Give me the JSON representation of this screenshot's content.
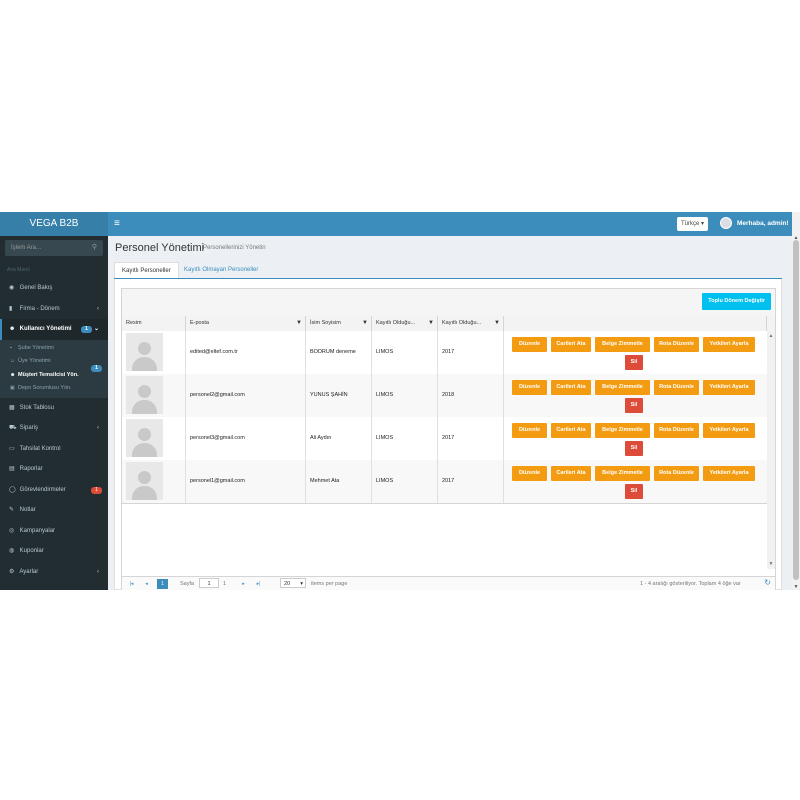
{
  "app": {
    "brand": "VEGA B2B",
    "menu_toggle_icon": "≡"
  },
  "header": {
    "language": "Türkçe ▾",
    "greeting": "Merhaba, admin!"
  },
  "sidebar": {
    "search_placeholder": "İşlem Ara...",
    "nav_header": "Ana Menü",
    "items": [
      {
        "label": "Genel Bakış",
        "icon": "dashboard-icon",
        "glyph": "◉"
      },
      {
        "label": "Firma - Dönem",
        "icon": "briefcase-icon",
        "glyph": "▮",
        "chevron": "‹"
      },
      {
        "label": "Kullanıcı Yönetimi",
        "icon": "users-icon",
        "glyph": "☻",
        "badge": "1",
        "chevron": "⌄"
      },
      {
        "label": "Stok Tablosu",
        "icon": "table-icon",
        "glyph": "▦"
      },
      {
        "label": "Sipariş",
        "icon": "cart-icon",
        "glyph": "⛟",
        "chevron": "‹"
      },
      {
        "label": "Tahsilat Kontrol",
        "icon": "money-icon",
        "glyph": "▭"
      },
      {
        "label": "Raporlar",
        "icon": "report-icon",
        "glyph": "▤"
      },
      {
        "label": "Görevlendirmeler",
        "icon": "tasks-icon",
        "glyph": "◯",
        "badge": "1"
      },
      {
        "label": "Notlar",
        "icon": "note-icon",
        "glyph": "✎"
      },
      {
        "label": "Kampanyalar",
        "icon": "eye-icon",
        "glyph": "◎"
      },
      {
        "label": "Kuponlar",
        "icon": "coupon-icon",
        "glyph": "◍"
      },
      {
        "label": "Ayarlar",
        "icon": "gear-icon",
        "glyph": "⚙",
        "chevron": "‹"
      }
    ],
    "submenu": [
      {
        "label": "Şube Yönetimi"
      },
      {
        "label": "Üye Yönetimi"
      },
      {
        "label": "Müşteri Temsilcisi Yön.",
        "badge": "1"
      },
      {
        "label": "Depo Sorumlusu Yön."
      }
    ]
  },
  "page": {
    "title": "Personel Yönetimi",
    "subtitle": "Personellerinizi Yönetin"
  },
  "tabs": [
    {
      "label": "Kayıtlı Personeller"
    },
    {
      "label": "Kayıtlı Olmayan Personeller"
    }
  ],
  "grid": {
    "bulk_button": "Toplu Dönem Değiştir",
    "columns": [
      "Resim",
      "E-posta",
      "İsim Soyisim",
      "Kayıtlı Olduğu...",
      "Kayıtlı Olduğu..."
    ],
    "rows": [
      {
        "email": "edited@eltef.com.tr",
        "name": "BODRUM deneme",
        "firm": "LIMOS",
        "year": "2017"
      },
      {
        "email": "personel2@gmail.com",
        "name": "YUNUS ŞAHİN",
        "firm": "LIMOS",
        "year": "2018"
      },
      {
        "email": "personel3@gmail.com",
        "name": "Ali Aydın",
        "firm": "LIMOS",
        "year": "2017"
      },
      {
        "email": "personel1@gmail.com",
        "name": "Mehmet Ata",
        "firm": "LIMOS",
        "year": "2017"
      }
    ],
    "actions": [
      "Düzenle",
      "Carileri Ata",
      "Belge Zimmetle",
      "Rota Düzenle",
      "Yetkileri Ayarla"
    ],
    "delete_label": "Sil"
  },
  "pager": {
    "first": "|◂",
    "prev": "◂",
    "current_page": "1",
    "page_label": "Sayfa",
    "page_input": "1",
    "total_pages": "1",
    "next": "▸",
    "last": "▸|",
    "page_size": "20",
    "page_size_caret": "▾",
    "items_per_page": "items per page",
    "summary": "1 - 4 aralığı gösteriliyor. Toplam 4 öğe var",
    "refresh_icon": "↻"
  },
  "colors": {
    "header": "#3c8dbc",
    "sidebar": "#222d32",
    "action": "#f39c12",
    "delete": "#dd4b39",
    "info": "#00c0ef"
  }
}
